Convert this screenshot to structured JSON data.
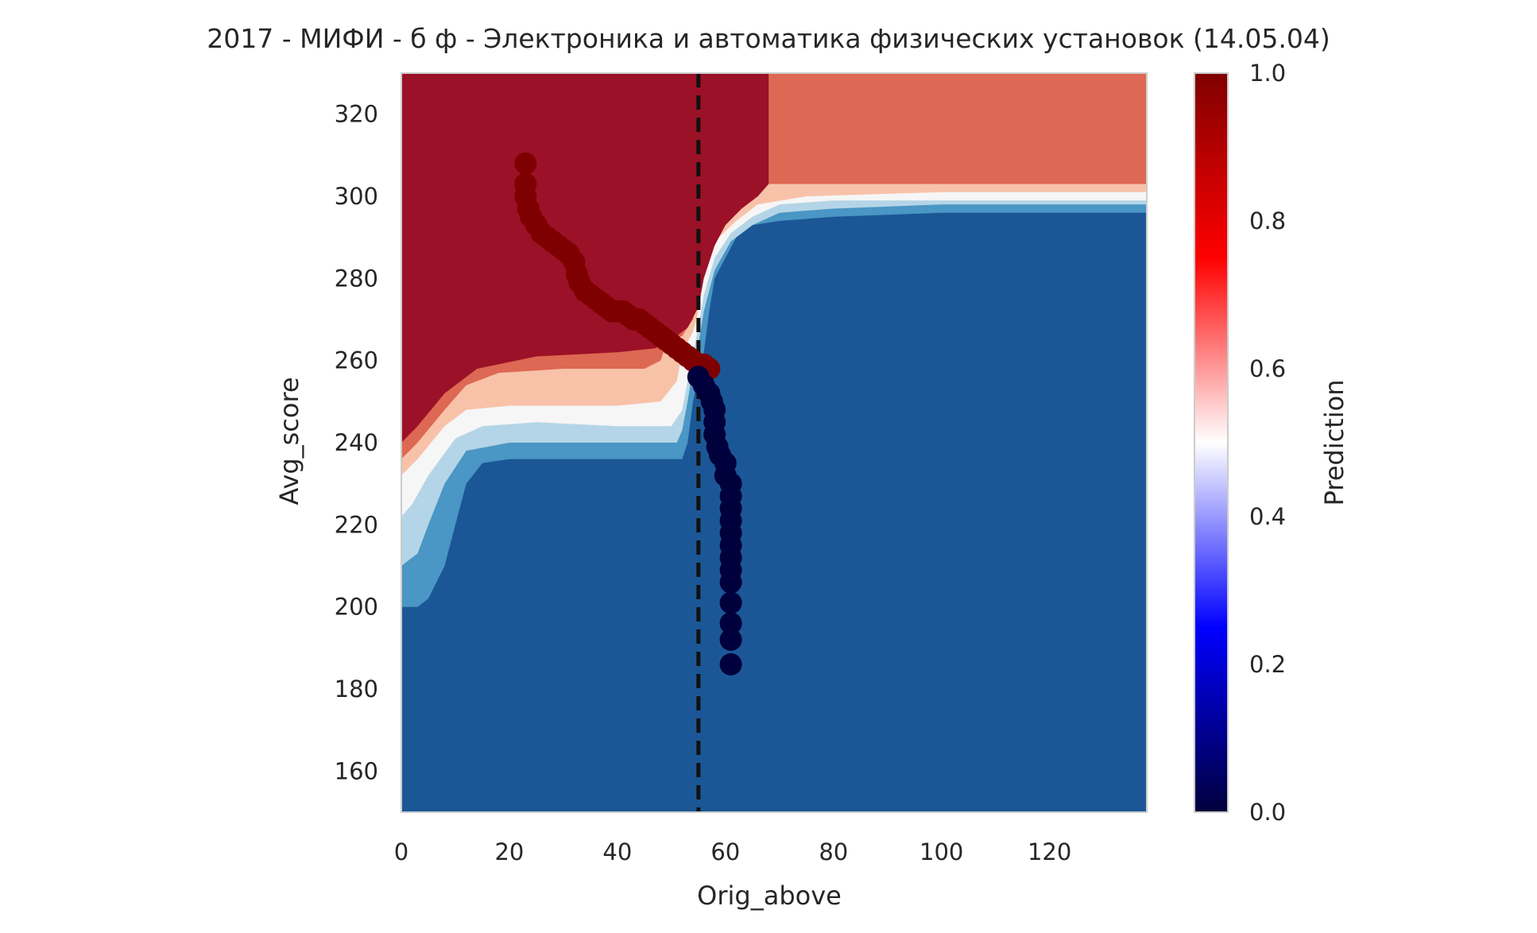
{
  "chart_data": {
    "type": "scatter",
    "title": "2017 - МИФИ - б ф - Электроника и автоматика физических установок (14.05.04)",
    "xlabel": "Orig_above",
    "ylabel": "Avg_score",
    "xlim": [
      0,
      138
    ],
    "ylim": [
      150,
      330
    ],
    "xticks": [
      0,
      20,
      40,
      60,
      80,
      100,
      120
    ],
    "yticks": [
      160,
      180,
      200,
      220,
      240,
      260,
      280,
      300,
      320
    ],
    "grid": false,
    "vline": {
      "x": 55,
      "style": "dashed",
      "color": "#111111"
    },
    "colorbar": {
      "label": "Prediction",
      "range": [
        0,
        1
      ],
      "ticks": [
        "0.0",
        "0.2",
        "0.4",
        "0.6",
        "0.8",
        "1.0"
      ],
      "colormap": [
        "#00003c",
        "#0000ff",
        "#ffffff",
        "#ff0000",
        "#7f0000"
      ]
    },
    "background": {
      "description_levels": [
        {
          "level": 0.05,
          "color": "#1b5796"
        },
        {
          "level": 0.2,
          "color": "#4a96c4"
        },
        {
          "level": 0.35,
          "color": "#b4d5e7"
        },
        {
          "level": 0.5,
          "color": "#f6f6f6"
        },
        {
          "level": 0.6,
          "color": "#f8c2a9"
        },
        {
          "level": 0.75,
          "color": "#dd6853"
        },
        {
          "level": 0.9,
          "color": "#9b1127"
        }
      ]
    },
    "series": [
      {
        "prediction": 1,
        "color": "#7f0000",
        "points": [
          [
            23,
            308
          ],
          [
            23,
            303
          ],
          [
            23,
            300
          ],
          [
            23.5,
            297
          ],
          [
            24,
            295
          ],
          [
            25,
            293
          ],
          [
            26,
            291
          ],
          [
            27,
            290
          ],
          [
            28,
            289
          ],
          [
            29,
            288
          ],
          [
            30,
            287
          ],
          [
            31,
            286
          ],
          [
            32,
            284
          ],
          [
            32.5,
            281
          ],
          [
            33,
            279
          ],
          [
            34,
            277
          ],
          [
            35,
            276
          ],
          [
            36,
            275
          ],
          [
            37,
            274
          ],
          [
            38,
            273
          ],
          [
            39,
            272
          ],
          [
            40,
            272
          ],
          [
            41,
            272
          ],
          [
            42,
            271
          ],
          [
            43,
            270
          ],
          [
            44,
            270
          ],
          [
            45,
            269
          ],
          [
            46,
            268
          ],
          [
            47,
            267
          ],
          [
            48,
            266
          ],
          [
            49,
            265
          ],
          [
            50,
            264
          ],
          [
            51,
            263
          ],
          [
            52,
            262
          ],
          [
            53,
            261
          ],
          [
            54,
            260
          ],
          [
            55,
            259
          ],
          [
            56,
            259
          ],
          [
            57,
            258
          ]
        ]
      },
      {
        "prediction": 0,
        "color": "#00003c",
        "points": [
          [
            55,
            256
          ],
          [
            56,
            254
          ],
          [
            57,
            252
          ],
          [
            57.5,
            250
          ],
          [
            58,
            248
          ],
          [
            58,
            245
          ],
          [
            58,
            242
          ],
          [
            58.5,
            239
          ],
          [
            59,
            237
          ],
          [
            60,
            235
          ],
          [
            60,
            232
          ],
          [
            61,
            230
          ],
          [
            61,
            227
          ],
          [
            61,
            224
          ],
          [
            61,
            221
          ],
          [
            61,
            218
          ],
          [
            61,
            215
          ],
          [
            61,
            212
          ],
          [
            61,
            209
          ],
          [
            61,
            206
          ],
          [
            61,
            201
          ],
          [
            61,
            196
          ],
          [
            61,
            192
          ],
          [
            61,
            186
          ]
        ]
      }
    ]
  }
}
